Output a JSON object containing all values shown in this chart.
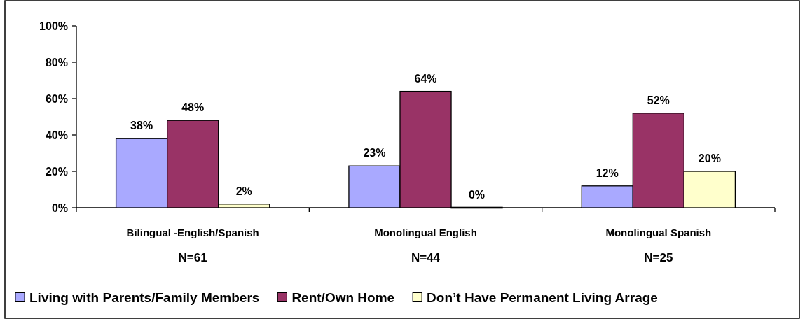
{
  "chart_data": {
    "type": "bar",
    "categories": [
      "Bilingual -English/Spanish\nN=61",
      "Monolingual English\nN=44",
      "Monolingual Spanish\nN=25"
    ],
    "series": [
      {
        "name": "Living with Parents/Family Members",
        "color": "#a9a9ff",
        "values": [
          38,
          23,
          12
        ],
        "value_labels": [
          "38%",
          "23%",
          "12%"
        ]
      },
      {
        "name": "Rent/Own Home",
        "color": "#993366",
        "values": [
          48,
          64,
          52
        ],
        "value_labels": [
          "48%",
          "64%",
          "52%"
        ]
      },
      {
        "name": "Don’t Have Permanent Living Arrage",
        "color": "#ffffcc",
        "values": [
          2,
          0,
          20
        ],
        "value_labels": [
          "2%",
          "0%",
          "20%"
        ]
      }
    ],
    "ylim": [
      0,
      100
    ],
    "yticks": [
      {
        "value": 0,
        "label": "0%"
      },
      {
        "value": 20,
        "label": "20%"
      },
      {
        "value": 40,
        "label": "40%"
      },
      {
        "value": 60,
        "label": "60%"
      },
      {
        "value": 80,
        "label": "80%"
      },
      {
        "value": 100,
        "label": "100%"
      }
    ],
    "legend": "bottom"
  }
}
